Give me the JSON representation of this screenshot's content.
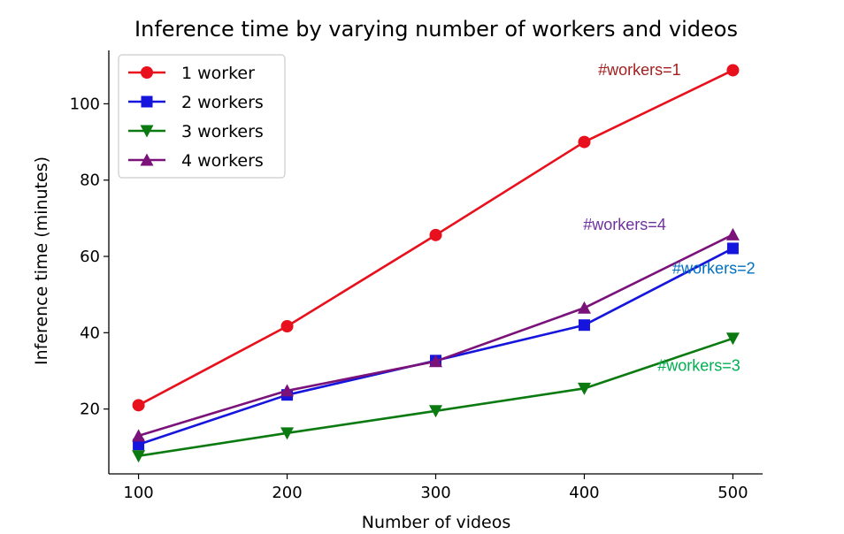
{
  "chart_data": {
    "type": "line",
    "title": "Inference time by varying number of workers and videos",
    "xlabel": "Number of videos",
    "ylabel": "Inference time (minutes)",
    "x": [
      100,
      200,
      300,
      400,
      500
    ],
    "xlim": [
      80,
      520
    ],
    "ylim": [
      3,
      114
    ],
    "xticks": [
      100,
      200,
      300,
      400,
      500
    ],
    "yticks": [
      20,
      40,
      60,
      80,
      100
    ],
    "grid": false,
    "legend_position": "top-left",
    "series": [
      {
        "name": "1 worker",
        "color": "#e8101d",
        "marker": "circle",
        "values": [
          21.0,
          41.7,
          65.6,
          90.0,
          108.8
        ]
      },
      {
        "name": "2 workers",
        "color": "#1515dd",
        "marker": "square",
        "values": [
          10.7,
          23.7,
          32.7,
          42.0,
          62.1
        ]
      },
      {
        "name": "3 workers",
        "color": "#0b7a10",
        "marker": "triangle-down",
        "values": [
          7.7,
          13.7,
          19.5,
          25.4,
          38.5
        ]
      },
      {
        "name": "4 workers",
        "color": "#7a127a",
        "marker": "triangle-up",
        "values": [
          13.0,
          24.8,
          32.5,
          46.5,
          65.7
        ]
      }
    ],
    "annotations": [
      {
        "text": "#workers=1",
        "color": "#a31f1f",
        "x": 465,
        "y": 107.5
      },
      {
        "text": "#workers=4",
        "color": "#7030a0",
        "x": 455,
        "y": 67.0
      },
      {
        "text": "#workers=2",
        "color": "#0070c0",
        "x": 515,
        "y": 55.5
      },
      {
        "text": "#workers=3",
        "color": "#00b050",
        "x": 505,
        "y": 30.0
      }
    ]
  }
}
